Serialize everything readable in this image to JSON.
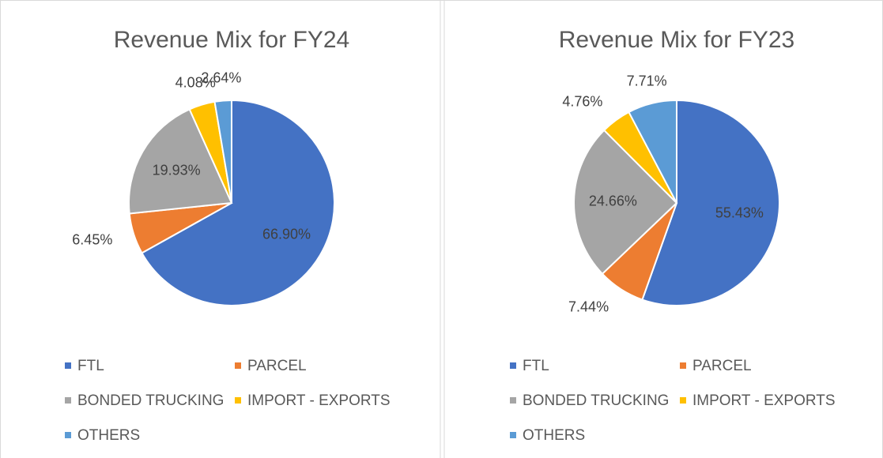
{
  "chart_data": [
    {
      "type": "pie",
      "title": "Revenue Mix for FY24",
      "categories": [
        "FTL",
        "PARCEL",
        "BONDED TRUCKING",
        "IMPORT - EXPORTS",
        "OTHERS"
      ],
      "values": [
        66.9,
        6.45,
        19.93,
        4.08,
        2.64
      ],
      "value_labels": [
        "66.90%",
        "6.45%",
        "19.93%",
        "4.08%",
        "2.64%"
      ],
      "colors": [
        "#4472c4",
        "#ed7d31",
        "#a5a5a5",
        "#ffc000",
        "#5b9bd5"
      ]
    },
    {
      "type": "pie",
      "title": "Revenue Mix for FY23",
      "categories": [
        "FTL",
        "PARCEL",
        "BONDED TRUCKING",
        "IMPORT - EXPORTS",
        "OTHERS"
      ],
      "values": [
        55.43,
        7.44,
        24.66,
        4.76,
        7.71
      ],
      "value_labels": [
        "55.43%",
        "7.44%",
        "24.66%",
        "4.76%",
        "7.71%"
      ],
      "colors": [
        "#4472c4",
        "#ed7d31",
        "#a5a5a5",
        "#ffc000",
        "#5b9bd5"
      ]
    }
  ]
}
